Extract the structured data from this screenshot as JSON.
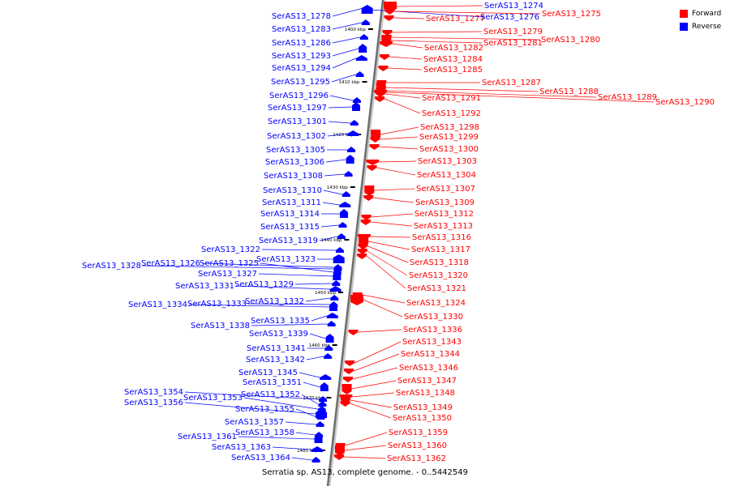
{
  "legend": {
    "forward_label": "Forward",
    "reverse_label": "Reverse",
    "forward_color": "#ff0000",
    "reverse_color": "#0000ff"
  },
  "caption": "Serratia sp. AS13, complete genome. - 0..5442549",
  "axis": {
    "tick_unit": "kbp",
    "ticks": [
      "1400 kbp",
      "1410 kbp",
      "1420 kbp",
      "1430 kbp",
      "1440 kbp",
      "1450 kbp",
      "1460 kbp",
      "1470 kbp",
      "1480 kbp"
    ]
  },
  "forward_genes": [
    "SerAS13_1274",
    "SerAS13_1275",
    "SerAS13_1277",
    "SerAS13_1279",
    "SerAS13_1280",
    "SerAS13_1281",
    "SerAS13_1282",
    "SerAS13_1284",
    "SerAS13_1285",
    "SerAS13_1287",
    "SerAS13_1288",
    "SerAS13_1289",
    "SerAS13_1290",
    "SerAS13_1291",
    "SerAS13_1292",
    "SerAS13_1298",
    "SerAS13_1299",
    "SerAS13_1300",
    "SerAS13_1303",
    "SerAS13_1304",
    "SerAS13_1307",
    "SerAS13_1309",
    "SerAS13_1312",
    "SerAS13_1313",
    "SerAS13_1316",
    "SerAS13_1317",
    "SerAS13_1318",
    "SerAS13_1320",
    "SerAS13_1321",
    "SerAS13_1324",
    "SerAS13_1330",
    "SerAS13_1336",
    "SerAS13_1343",
    "SerAS13_1344",
    "SerAS13_1346",
    "SerAS13_1347",
    "SerAS13_1348",
    "SerAS13_1349",
    "SerAS13_1350",
    "SerAS13_1359",
    "SerAS13_1360",
    "SerAS13_1362"
  ],
  "reverse_genes": [
    "SerAS13_1276",
    "SerAS13_1278",
    "SerAS13_1283",
    "SerAS13_1286",
    "SerAS13_1293",
    "SerAS13_1294",
    "SerAS13_1295",
    "SerAS13_1296",
    "SerAS13_1297",
    "SerAS13_1301",
    "SerAS13_1302",
    "SerAS13_1305",
    "SerAS13_1306",
    "SerAS13_1308",
    "SerAS13_1310",
    "SerAS13_1311",
    "SerAS13_1314",
    "SerAS13_1315",
    "SerAS13_1319",
    "SerAS13_1322",
    "SerAS13_1323",
    "SerAS13_1328",
    "SerAS13_1326",
    "SerAS13_1325",
    "SerAS13_1327",
    "SerAS13_1331",
    "SerAS13_1329",
    "SerAS13_1332",
    "SerAS13_1334",
    "SerAS13_1333",
    "SerAS13_1335",
    "SerAS13_1338",
    "SerAS13_1339",
    "SerAS13_1341",
    "SerAS13_1342",
    "SerAS13_1345",
    "SerAS13_1351",
    "SerAS13_1354",
    "SerAS13_1352",
    "SerAS13_1353",
    "SerAS13_1356",
    "SerAS13_1355",
    "SerAS13_1357",
    "SerAS13_1358",
    "SerAS13_1361",
    "SerAS13_1363",
    "SerAS13_1364"
  ]
}
